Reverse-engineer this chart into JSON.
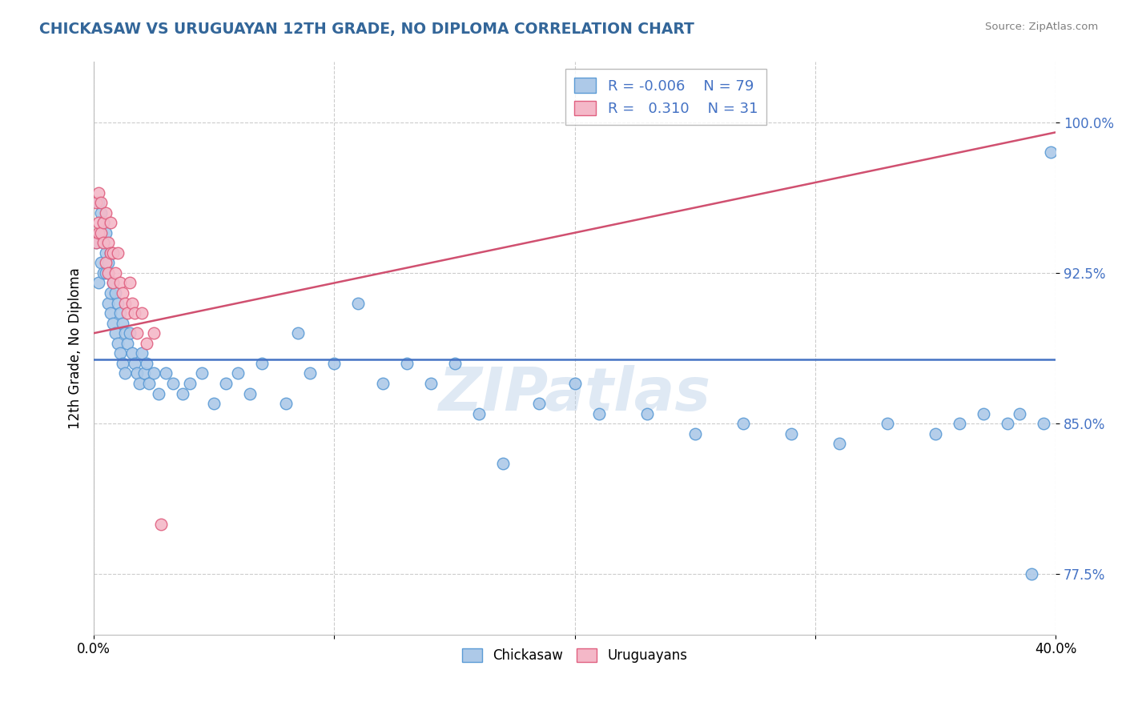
{
  "title": "CHICKASAW VS URUGUAYAN 12TH GRADE, NO DIPLOMA CORRELATION CHART",
  "source": "Source: ZipAtlas.com",
  "ylabel": "12th Grade, No Diploma",
  "yticks": [
    0.775,
    0.85,
    0.925,
    1.0
  ],
  "ytick_labels": [
    "77.5%",
    "85.0%",
    "92.5%",
    "100.0%"
  ],
  "xlim": [
    0.0,
    0.4
  ],
  "ylim": [
    0.745,
    1.03
  ],
  "chickasaw_R": -0.006,
  "chickasaw_N": 79,
  "uruguayan_R": 0.31,
  "uruguayan_N": 31,
  "chickasaw_color": "#adc9e8",
  "chickasaw_edge": "#5b9bd5",
  "uruguayan_color": "#f4b8c8",
  "uruguayan_edge": "#e06080",
  "trend_blue": "#4472c4",
  "trend_pink": "#d05070",
  "legend_blue_face": "#adc9e8",
  "legend_pink_face": "#f4b8c8",
  "watermark": "ZIPatlas",
  "blue_trend_y0": 0.882,
  "blue_trend_y1": 0.882,
  "pink_trend_y0": 0.895,
  "pink_trend_y1": 0.995,
  "chickasaw_x": [
    0.001,
    0.002,
    0.002,
    0.003,
    0.003,
    0.003,
    0.004,
    0.004,
    0.004,
    0.005,
    0.005,
    0.005,
    0.006,
    0.006,
    0.007,
    0.007,
    0.007,
    0.008,
    0.008,
    0.009,
    0.009,
    0.01,
    0.01,
    0.011,
    0.011,
    0.012,
    0.012,
    0.013,
    0.013,
    0.014,
    0.015,
    0.016,
    0.017,
    0.018,
    0.019,
    0.02,
    0.021,
    0.022,
    0.023,
    0.025,
    0.027,
    0.03,
    0.033,
    0.037,
    0.04,
    0.045,
    0.05,
    0.055,
    0.06,
    0.065,
    0.07,
    0.08,
    0.085,
    0.09,
    0.1,
    0.11,
    0.12,
    0.13,
    0.14,
    0.15,
    0.16,
    0.17,
    0.185,
    0.2,
    0.21,
    0.23,
    0.25,
    0.27,
    0.29,
    0.31,
    0.33,
    0.35,
    0.36,
    0.37,
    0.38,
    0.385,
    0.39,
    0.395,
    0.398
  ],
  "chickasaw_y": [
    0.94,
    0.92,
    0.96,
    0.945,
    0.93,
    0.955,
    0.94,
    0.925,
    0.95,
    0.935,
    0.945,
    0.925,
    0.93,
    0.91,
    0.935,
    0.915,
    0.905,
    0.92,
    0.9,
    0.915,
    0.895,
    0.91,
    0.89,
    0.905,
    0.885,
    0.9,
    0.88,
    0.895,
    0.875,
    0.89,
    0.895,
    0.885,
    0.88,
    0.875,
    0.87,
    0.885,
    0.875,
    0.88,
    0.87,
    0.875,
    0.865,
    0.875,
    0.87,
    0.865,
    0.87,
    0.875,
    0.86,
    0.87,
    0.875,
    0.865,
    0.88,
    0.86,
    0.895,
    0.875,
    0.88,
    0.91,
    0.87,
    0.88,
    0.87,
    0.88,
    0.855,
    0.83,
    0.86,
    0.87,
    0.855,
    0.855,
    0.845,
    0.85,
    0.845,
    0.84,
    0.85,
    0.845,
    0.85,
    0.855,
    0.85,
    0.855,
    0.775,
    0.85,
    0.985
  ],
  "uruguayan_x": [
    0.001,
    0.001,
    0.002,
    0.002,
    0.002,
    0.003,
    0.003,
    0.004,
    0.004,
    0.005,
    0.005,
    0.006,
    0.006,
    0.007,
    0.007,
    0.008,
    0.008,
    0.009,
    0.01,
    0.011,
    0.012,
    0.013,
    0.014,
    0.015,
    0.016,
    0.017,
    0.018,
    0.02,
    0.022,
    0.025,
    0.028
  ],
  "uruguayan_y": [
    0.94,
    0.96,
    0.945,
    0.965,
    0.95,
    0.945,
    0.96,
    0.94,
    0.95,
    0.93,
    0.955,
    0.925,
    0.94,
    0.935,
    0.95,
    0.92,
    0.935,
    0.925,
    0.935,
    0.92,
    0.915,
    0.91,
    0.905,
    0.92,
    0.91,
    0.905,
    0.895,
    0.905,
    0.89,
    0.895,
    0.8
  ]
}
